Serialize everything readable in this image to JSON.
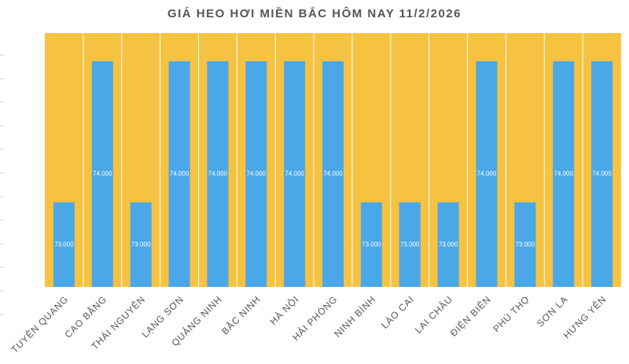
{
  "chart_data": {
    "type": "bar",
    "title": "GIÁ HEO HƠI MIỀN BẮC HÔM NAY 11/2/2026",
    "categories": [
      "TUYÊN QUANG",
      "CAO BẰNG",
      "THÁI NGUYÊN",
      "LẠNG SƠN",
      "QUẢNG NINH",
      "BẮC NINH",
      "HÀ NỘI",
      "HẢI PHÒNG",
      "NINH BÌNH",
      "LÀO CAI",
      "LAI CHÂU",
      "ĐIỆN BIÊN",
      "PHÚ THỌ",
      "SƠN LA",
      "HƯNG YÊN"
    ],
    "values": [
      73000,
      74000,
      73000,
      74000,
      74000,
      74000,
      74000,
      74000,
      73000,
      73000,
      73000,
      74000,
      73000,
      74000,
      74000
    ],
    "value_labels": [
      "73.000",
      "74.000",
      "73.000",
      "74.000",
      "74.000",
      "74.000",
      "74.000",
      "74.000",
      "73.000",
      "73.000",
      "73.000",
      "74.000",
      "73.000",
      "74.000",
      "74.000"
    ],
    "color": "#4aa8e8",
    "background": "#f5c242",
    "ylim": [
      72400,
      74200
    ]
  }
}
